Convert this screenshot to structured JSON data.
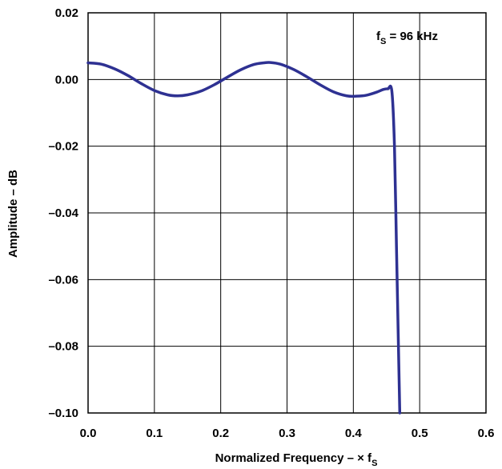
{
  "chart_data": {
    "type": "line",
    "title": "",
    "xlabel": "Normalized Frequency – × f",
    "xlabel_subscript": "S",
    "ylabel": "Amplitude – dB",
    "xlim": [
      0.0,
      0.6
    ],
    "ylim": [
      -0.1,
      0.02
    ],
    "grid": true,
    "x_ticks": [
      0.0,
      0.1,
      0.2,
      0.3,
      0.4,
      0.5,
      0.6
    ],
    "x_tick_labels": [
      "0.0",
      "0.1",
      "0.2",
      "0.3",
      "0.4",
      "0.5",
      "0.6"
    ],
    "y_ticks": [
      0.02,
      0.0,
      -0.02,
      -0.04,
      -0.06,
      -0.08,
      -0.1
    ],
    "y_tick_labels": [
      "0.02",
      "0.00",
      "–0.02",
      "–0.04",
      "–0.06",
      "–0.08",
      "–0.10"
    ],
    "annotation": {
      "text_main": "f",
      "text_sub": "S",
      "text_rest": " = 96 kHz"
    },
    "line_color": "#2e3192",
    "series": [
      {
        "x": [
          0.0,
          0.02,
          0.04,
          0.06,
          0.08,
          0.1,
          0.12,
          0.135,
          0.15,
          0.17,
          0.19,
          0.21,
          0.23,
          0.25,
          0.265,
          0.275,
          0.29,
          0.31,
          0.33,
          0.35,
          0.37,
          0.39,
          0.405,
          0.42,
          0.435,
          0.445,
          0.452,
          0.458,
          0.462,
          0.465,
          0.468,
          0.47
        ],
        "values": [
          0.005,
          0.0046,
          0.0032,
          0.0012,
          -0.0012,
          -0.0033,
          -0.0046,
          -0.0049,
          -0.0046,
          -0.0035,
          -0.0016,
          0.0007,
          0.0029,
          0.0045,
          0.005,
          0.0051,
          0.0046,
          0.003,
          0.0008,
          -0.0016,
          -0.0037,
          -0.0049,
          -0.005,
          -0.0047,
          -0.0038,
          -0.003,
          -0.0028,
          -0.0034,
          -0.02,
          -0.05,
          -0.08,
          -0.1
        ]
      }
    ]
  }
}
